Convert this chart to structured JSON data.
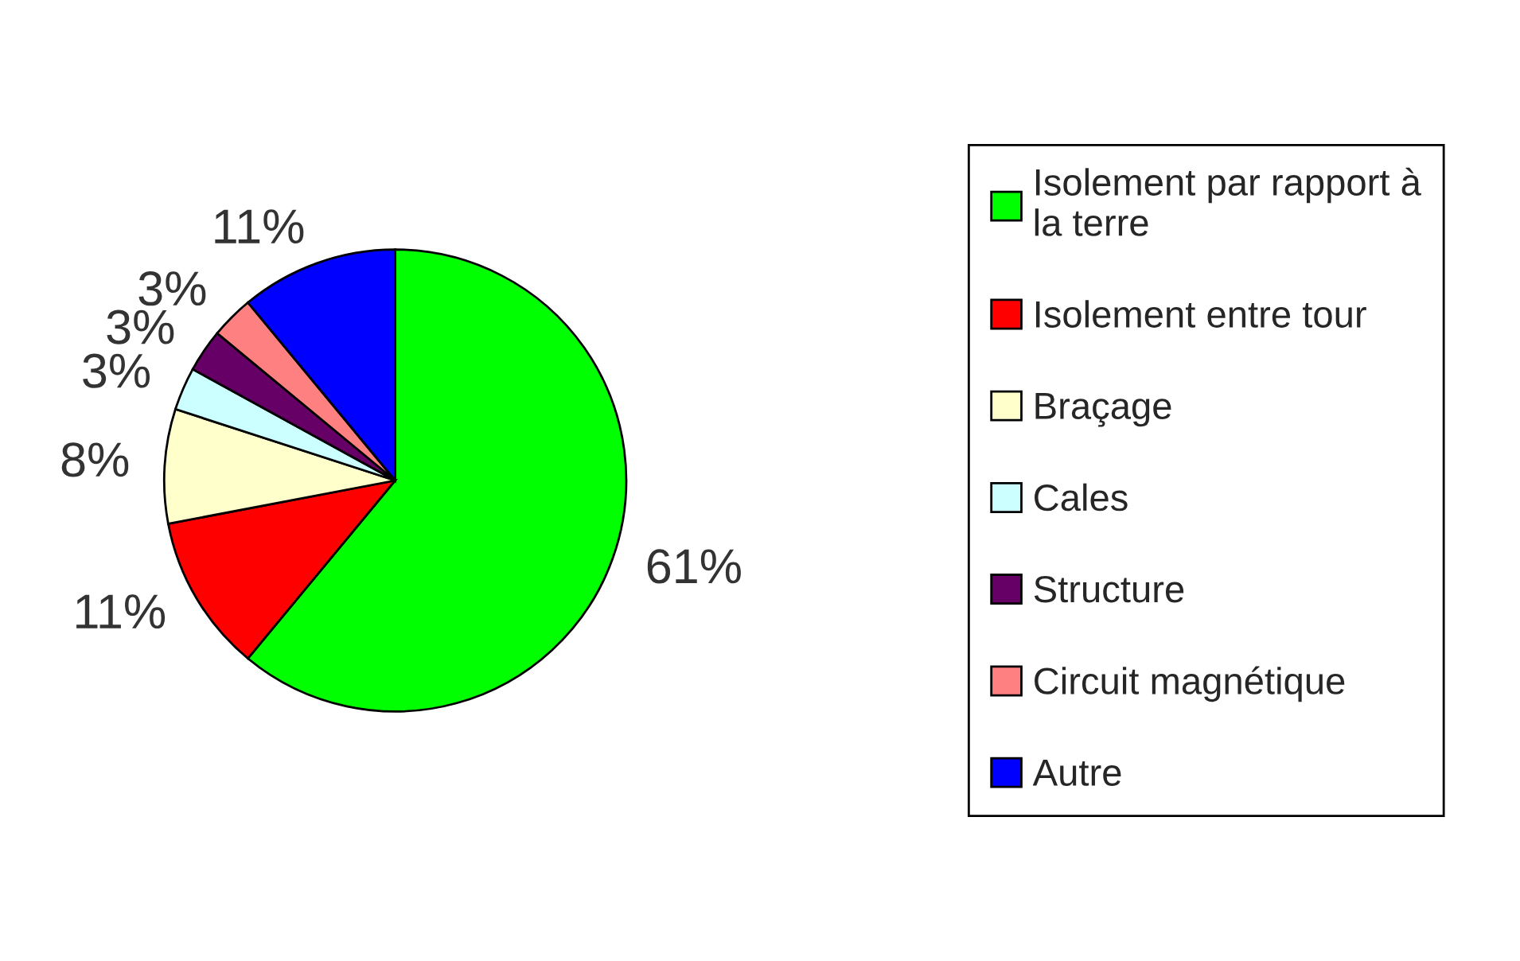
{
  "chart_data": {
    "type": "pie",
    "categories": [
      "Isolement par rapport à\nla terre",
      "Isolement entre tour",
      "Braçage",
      "Cales",
      "Structure",
      "Circuit magnétique",
      "Autre"
    ],
    "values": [
      61,
      11,
      8,
      3,
      3,
      3,
      11
    ],
    "value_labels": [
      "61%",
      "11%",
      "8%",
      "3%",
      "3%",
      "3%",
      "11%"
    ],
    "colors": [
      "#00ff00",
      "#ff0000",
      "#ffffcc",
      "#ccffff",
      "#660066",
      "#ff8080",
      "#0000ff"
    ],
    "legend": "right"
  }
}
